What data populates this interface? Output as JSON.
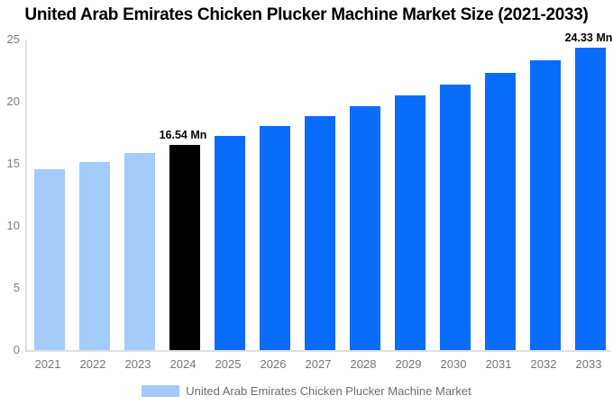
{
  "title": "United Arab Emirates Chicken Plucker Machine Market Size (2021-2033)",
  "colors": {
    "historical_bar": "#A3CCFA",
    "highlight_bar": "#000000",
    "forecast_bar": "#0A6CFA",
    "axis_line": "#E0E0E0",
    "tick_label": "#7D7D7D",
    "legend_text": "#6E6E6E",
    "title_text": "#000000",
    "background": "#FFFFFF"
  },
  "chart_data": {
    "type": "bar",
    "title": "United Arab Emirates Chicken Plucker Machine Market Size (2021-2033)",
    "categories": [
      "2021",
      "2022",
      "2023",
      "2024",
      "2025",
      "2026",
      "2027",
      "2028",
      "2029",
      "2030",
      "2031",
      "2032",
      "2033"
    ],
    "values": [
      14.55,
      15.18,
      15.85,
      16.54,
      17.26,
      18.02,
      18.81,
      19.63,
      20.49,
      21.39,
      22.33,
      23.31,
      24.33
    ],
    "bar_colors": [
      "#A3CCFA",
      "#A3CCFA",
      "#A3CCFA",
      "#000000",
      "#0A6CFA",
      "#0A6CFA",
      "#0A6CFA",
      "#0A6CFA",
      "#0A6CFA",
      "#0A6CFA",
      "#0A6CFA",
      "#0A6CFA",
      "#0A6CFA"
    ],
    "annotations": [
      {
        "index": 3,
        "label": "16.54 Mn"
      },
      {
        "index": 12,
        "label": "24.33 Mn"
      }
    ],
    "xlabel": "",
    "ylabel": "",
    "yticks": [
      0,
      5,
      10,
      15,
      20,
      25
    ],
    "ylim": [
      0,
      25
    ],
    "grid": false,
    "legend": {
      "position": "bottom",
      "label": "United Arab Emirates Chicken Plucker Machine Market"
    }
  }
}
